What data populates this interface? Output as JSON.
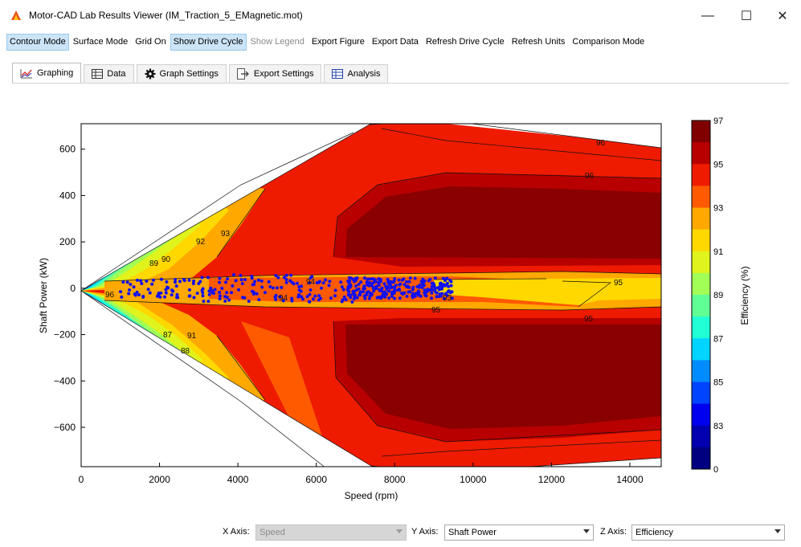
{
  "window": {
    "title": "Motor-CAD Lab Results Viewer (IM_Traction_5_EMagnetic.mot)",
    "minimize": "—",
    "maximize": "☐",
    "close": "✕"
  },
  "toolbar": [
    {
      "label": "Contour Mode",
      "state": "active"
    },
    {
      "label": "Surface Mode",
      "state": "normal"
    },
    {
      "label": "Grid On",
      "state": "normal"
    },
    {
      "label": "Show Drive Cycle",
      "state": "active"
    },
    {
      "label": "Show Legend",
      "state": "disabled"
    },
    {
      "label": "Export Figure",
      "state": "normal"
    },
    {
      "label": "Export Data",
      "state": "normal"
    },
    {
      "label": "Refresh Drive Cycle",
      "state": "normal"
    },
    {
      "label": "Refresh Units",
      "state": "normal"
    },
    {
      "label": "Comparison Mode",
      "state": "normal"
    }
  ],
  "tabs": [
    {
      "label": "Graphing",
      "icon": "graph-icon",
      "active": true
    },
    {
      "label": "Data",
      "icon": "table-icon",
      "active": false
    },
    {
      "label": "Graph Settings",
      "icon": "gear-icon",
      "active": false
    },
    {
      "label": "Export Settings",
      "icon": "export-icon",
      "active": false
    },
    {
      "label": "Analysis",
      "icon": "analysis-icon",
      "active": false
    }
  ],
  "axes": {
    "x_label": "X Axis:",
    "x_value": "Speed",
    "y_label": "Y Axis:",
    "y_value": "Shaft Power",
    "z_label": "Z Axis:",
    "z_value": "Efficiency"
  },
  "chart_data": {
    "type": "contour",
    "xlabel": "Speed  (rpm)",
    "ylabel": "Shaft Power  (kW)",
    "zlabel": "Efficiency (%)",
    "xlim": [
      0,
      14800
    ],
    "ylim": [
      -770,
      710
    ],
    "xticks": [
      "0",
      "2000",
      "4000",
      "6000",
      "8000",
      "10000",
      "12000",
      "14000"
    ],
    "yticks": [
      "600",
      "400",
      "200",
      "0",
      "−200",
      "−400",
      "−600"
    ],
    "colorbar_ticks": [
      "97",
      "95",
      "93",
      "91",
      "89",
      "87",
      "85",
      "83",
      "0"
    ],
    "contour_labels": [
      "96",
      "96",
      "95",
      "93",
      "92",
      "90",
      "89",
      "91",
      "93",
      "94",
      "94",
      "95",
      "95",
      "96",
      "87",
      "88"
    ],
    "colors": {
      "97": "#800000",
      "96": "#b80000",
      "95": "#ee1b00",
      "94": "#ff5a00",
      "93": "#ffa800",
      "92": "#ffd800",
      "91": "#e0f31c",
      "90": "#a2ff56",
      "89": "#60ff96",
      "88": "#20ffd6",
      "87": "#00d4ff",
      "86": "#008cff",
      "85": "#0044ff",
      "84": "#0000f0",
      "83": "#0000b0",
      "0": "#000080"
    },
    "drive_cycle_color": "#1010ee"
  }
}
